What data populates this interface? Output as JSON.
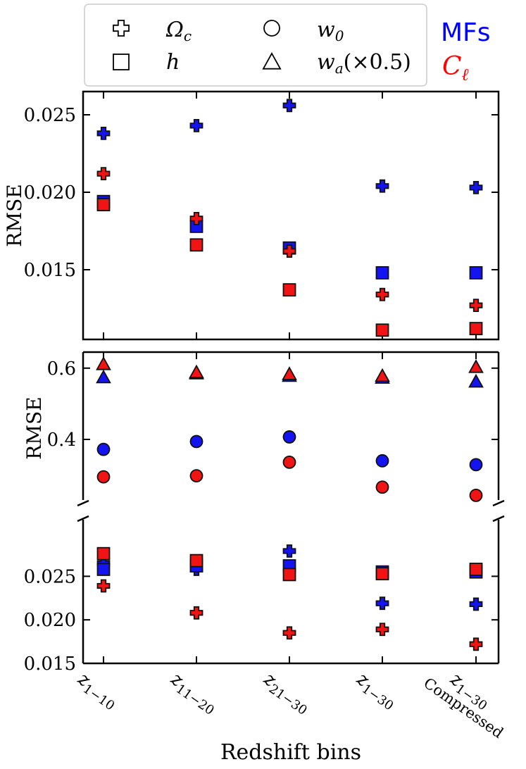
{
  "legend": {
    "entries": [
      {
        "marker": "plus",
        "label": "Ω",
        "sub": "c"
      },
      {
        "marker": "circle",
        "label": "w",
        "sub": "0"
      },
      {
        "marker": "square",
        "label": "h",
        "sub": ""
      },
      {
        "marker": "triangle",
        "label": "w",
        "sub": "a",
        "suffix": "(×0.5)"
      }
    ],
    "method_labels": [
      {
        "name": "MFs",
        "color": "#0000ff"
      },
      {
        "name": "C",
        "sub": "ℓ",
        "color": "#ff0000"
      }
    ]
  },
  "colors": {
    "MFs": "#1414f0",
    "Cl": "#f01414",
    "frame": "#000000"
  },
  "chart_data": {
    "type": "scatter",
    "xlabel": "Redshift bins",
    "categories": [
      {
        "main": "z",
        "sub": "1−10",
        "extra": ""
      },
      {
        "main": "z",
        "sub": "11−20",
        "extra": ""
      },
      {
        "main": "z",
        "sub": "21−30",
        "extra": ""
      },
      {
        "main": "z",
        "sub": "1−30",
        "extra": ""
      },
      {
        "main": "z",
        "sub": "1−30",
        "extra": "Compressed"
      }
    ],
    "panels": [
      {
        "ylabel": "RMSE",
        "ylim": [
          0.0105,
          0.0265
        ],
        "yticks": [
          "0.015",
          "0.020",
          "0.025"
        ],
        "ytick_values": [
          0.015,
          0.02,
          0.025
        ],
        "series": [
          {
            "method": "MFs",
            "marker": "plus",
            "param": "Omega_c",
            "values": [
              0.0238,
              0.0243,
              0.0256,
              0.0204,
              0.0203
            ]
          },
          {
            "method": "MFs",
            "marker": "square",
            "param": "h",
            "values": [
              0.0194,
              0.0178,
              0.0164,
              0.0148,
              0.0148
            ]
          },
          {
            "method": "Cl",
            "marker": "plus",
            "param": "Omega_c",
            "values": [
              0.0212,
              0.0183,
              0.0162,
              0.0134,
              0.0127
            ]
          },
          {
            "method": "Cl",
            "marker": "square",
            "param": "h",
            "values": [
              0.0192,
              0.0166,
              0.0137,
              0.0111,
              0.0112
            ]
          }
        ]
      },
      {
        "ylabel": "RMSE",
        "broken_axis": true,
        "upper": {
          "ylim": [
            0.23,
            0.645
          ],
          "yticks": [
            "0.4",
            "0.6"
          ],
          "ytick_values": [
            0.4,
            0.6
          ],
          "series": [
            {
              "method": "MFs",
              "marker": "triangle",
              "param": "w_a",
              "values": [
                0.574,
                0.585,
                0.578,
                0.573,
                0.562
              ]
            },
            {
              "method": "Cl",
              "marker": "triangle",
              "param": "w_a",
              "values": [
                0.611,
                0.588,
                0.583,
                0.578,
                0.603
              ]
            },
            {
              "method": "MFs",
              "marker": "circle",
              "param": "w_0",
              "values": [
                0.372,
                0.394,
                0.407,
                0.34,
                0.329
              ]
            },
            {
              "method": "Cl",
              "marker": "circle",
              "param": "w_0",
              "values": [
                0.295,
                0.298,
                0.336,
                0.266,
                0.243
              ]
            }
          ]
        },
        "lower": {
          "ylim": [
            0.015,
            0.0315
          ],
          "yticks": [
            "0.015",
            "0.020",
            "0.025"
          ],
          "ytick_values": [
            0.015,
            0.02,
            0.025
          ],
          "series": [
            {
              "method": "MFs",
              "marker": "plus",
              "param": "Omega_c",
              "values": [
                0.0265,
                0.0258,
                0.0279,
                0.0219,
                0.0218
              ]
            },
            {
              "method": "MFs",
              "marker": "square",
              "param": "h",
              "values": [
                0.0258,
                0.0262,
                0.0262,
                0.0255,
                0.0255
              ]
            },
            {
              "method": "Cl",
              "marker": "plus",
              "param": "Omega_c",
              "values": [
                0.0239,
                0.0208,
                0.0185,
                0.0189,
                0.0172
              ]
            },
            {
              "method": "Cl",
              "marker": "square",
              "param": "h",
              "values": [
                0.0276,
                0.0268,
                0.0252,
                0.0253,
                0.0258
              ]
            }
          ]
        }
      }
    ]
  }
}
